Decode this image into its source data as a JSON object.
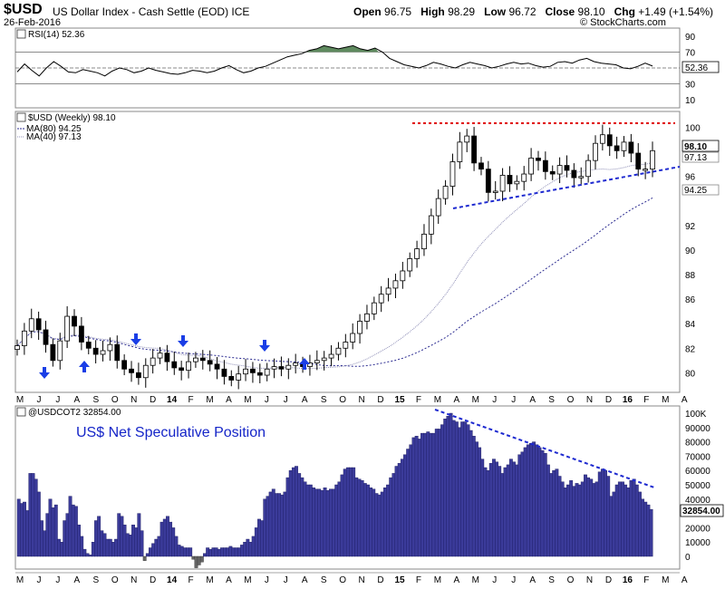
{
  "header": {
    "symbol": "$USD",
    "name": "US Dollar Index - Cash Settle (EOD) ICE",
    "date": "26-Feb-2016",
    "open_label": "Open",
    "open": "96.75",
    "high_label": "High",
    "high": "98.29",
    "low_label": "Low",
    "low": "96.72",
    "close_label": "Close",
    "close": "98.10",
    "chg_label": "Chg",
    "chg": "+1.49 (+1.54%)",
    "credit": "© StockCharts.com"
  },
  "rsi_panel": {
    "legend": "RSI(14) 52.36",
    "current_label": "52.36",
    "ticks": [
      "90",
      "70",
      "50",
      "30",
      "10"
    ]
  },
  "price_panel": {
    "legend_main": "$USD (Weekly) 98.10",
    "legend_ma80": "MA(80) 94.25",
    "legend_ma40": "MA(40) 97.13",
    "ticks": [
      "100",
      "98",
      "96",
      "94",
      "92",
      "90",
      "88",
      "86",
      "84",
      "82",
      "80"
    ],
    "last_labels": [
      "98.10",
      "97.13",
      "94.25"
    ]
  },
  "cot_panel": {
    "legend": "@USDCOT2 32854.00",
    "title": "US$ Net Speculative Position",
    "last_label": "32854.00",
    "ticks": [
      "100K",
      "90000",
      "80000",
      "70000",
      "60000",
      "50000",
      "40000",
      "30000",
      "20000",
      "10000",
      "0"
    ]
  },
  "x_axis_labels": [
    "M",
    "J",
    "J",
    "A",
    "S",
    "O",
    "N",
    "D",
    "14",
    "F",
    "M",
    "A",
    "M",
    "J",
    "J",
    "A",
    "S",
    "O",
    "N",
    "D",
    "15",
    "F",
    "M",
    "A",
    "M",
    "J",
    "J",
    "A",
    "S",
    "O",
    "N",
    "D",
    "16",
    "F",
    "M",
    "A"
  ],
  "colors": {
    "bar_fill": "#3b3b9a",
    "bar_stroke": "#1a1a5e",
    "neg_bar": "#666666",
    "resistance": "#e00000",
    "trendline": "#1e2ad0",
    "arrow": "#1a3ee6",
    "rsi_fill": "#5f8a5f",
    "title_color": "#1525c8"
  },
  "chart_data": [
    {
      "type": "line",
      "name": "RSI(14)",
      "ylim": [
        0,
        100
      ],
      "guide_levels": [
        70,
        50,
        30
      ],
      "values": [
        45,
        55,
        47,
        40,
        50,
        58,
        52,
        45,
        44,
        48,
        46,
        44,
        40,
        46,
        50,
        48,
        44,
        46,
        50,
        47,
        45,
        43,
        42,
        44,
        47,
        46,
        44,
        46,
        50,
        53,
        48,
        44,
        46,
        50,
        52,
        56,
        60,
        64,
        66,
        68,
        72,
        74,
        78,
        76,
        74,
        76,
        78,
        74,
        72,
        75,
        70,
        62,
        58,
        54,
        52,
        50,
        53,
        57,
        55,
        52,
        50,
        54,
        57,
        55,
        53,
        50,
        52,
        55,
        57,
        55,
        56,
        53,
        51,
        52,
        57,
        58,
        56,
        60,
        62,
        58,
        56,
        55,
        54,
        50,
        49,
        52,
        56,
        52.36
      ]
    },
    {
      "type": "line",
      "name": "$USD (Weekly)",
      "ylim": [
        78.4,
        101.3
      ],
      "values": [
        82.2,
        83.4,
        84.4,
        83.5,
        82.3,
        81.0,
        82.6,
        84.6,
        83.8,
        82.5,
        82.0,
        81.5,
        81.8,
        82.3,
        81.0,
        80.3,
        80.0,
        79.6,
        80.6,
        81.2,
        81.6,
        80.9,
        80.4,
        80.2,
        80.9,
        81.2,
        81.0,
        80.7,
        80.3,
        79.7,
        79.4,
        79.9,
        80.3,
        80.0,
        79.8,
        80.3,
        80.5,
        80.3,
        80.6,
        80.8,
        80.5,
        80.8,
        81.0,
        81.2,
        81.5,
        82.0,
        82.5,
        83.2,
        84.2,
        84.8,
        85.7,
        86.4,
        86.9,
        87.5,
        88.3,
        89.3,
        90.1,
        91.3,
        92.8,
        94.2,
        95.2,
        97.2,
        98.8,
        99.3,
        97.1,
        96.6,
        94.7,
        94.8,
        96.1,
        95.4,
        95.6,
        96.2,
        97.5,
        97.3,
        96.4,
        96.2,
        96.9,
        96.5,
        95.9,
        96.0,
        97.3,
        98.7,
        99.4,
        98.5,
        98.1,
        98.8,
        97.9,
        96.6,
        96.6,
        98.1
      ],
      "ma80_last": 94.25,
      "ma40_last": 97.13
    },
    {
      "type": "bar",
      "name": "@USDCOT2 Net Speculative Position",
      "ylim": [
        -8000,
        100000
      ],
      "values": [
        40000,
        37000,
        38000,
        32000,
        58000,
        58000,
        54000,
        45000,
        25000,
        18000,
        30000,
        40000,
        34000,
        36000,
        12000,
        10000,
        25000,
        30000,
        42000,
        36000,
        35000,
        22000,
        14000,
        5000,
        2000,
        1000,
        10000,
        25000,
        28000,
        18000,
        16000,
        12000,
        12000,
        10000,
        12000,
        30000,
        28000,
        22000,
        16000,
        15000,
        22000,
        20000,
        30000,
        18000,
        -3000,
        2000,
        6000,
        9000,
        12000,
        14000,
        24000,
        26000,
        28000,
        24000,
        20000,
        14000,
        8000,
        7000,
        6000,
        6000,
        6000,
        -2000,
        -8000,
        -6000,
        -4000,
        2000,
        6000,
        5000,
        6000,
        6000,
        5000,
        6000,
        6000,
        6000,
        7000,
        6000,
        6000,
        6000,
        8000,
        10000,
        12000,
        10000,
        14000,
        20000,
        26000,
        25000,
        40000,
        42000,
        45000,
        47000,
        44000,
        44000,
        43000,
        45000,
        55000,
        60000,
        62000,
        63000,
        58000,
        55000,
        52000,
        50000,
        50000,
        48000,
        47000,
        47000,
        46000,
        48000,
        46000,
        47000,
        47000,
        50000,
        52000,
        57000,
        61000,
        62000,
        62000,
        62000,
        55000,
        54000,
        53000,
        51000,
        50000,
        48000,
        47000,
        44000,
        43000,
        45000,
        48000,
        50000,
        55000,
        58000,
        63000,
        65000,
        68000,
        71000,
        75000,
        78000,
        83000,
        84000,
        82000,
        86000,
        86000,
        87000,
        86000,
        86000,
        89000,
        89000,
        92000,
        96000,
        98000,
        100000,
        95000,
        94000,
        90000,
        94000,
        94000,
        92000,
        88000,
        84000,
        80000,
        76000,
        68000,
        62000,
        60000,
        65000,
        68000,
        66000,
        63000,
        58000,
        62000,
        64000,
        68000,
        66000,
        64000,
        71000,
        73000,
        76000,
        78000,
        79000,
        80000,
        78000,
        76000,
        74000,
        72000,
        64000,
        58000,
        60000,
        61000,
        56000,
        52000,
        48000,
        50000,
        53000,
        49000,
        51000,
        50000,
        52000,
        57000,
        55000,
        54000,
        51000,
        52000,
        59000,
        61000,
        60000,
        56000,
        42000,
        45000,
        50000,
        52000,
        52000,
        50000,
        48000,
        53000,
        54000,
        50000,
        45000,
        40000,
        38000,
        36000,
        32854
      ]
    }
  ]
}
